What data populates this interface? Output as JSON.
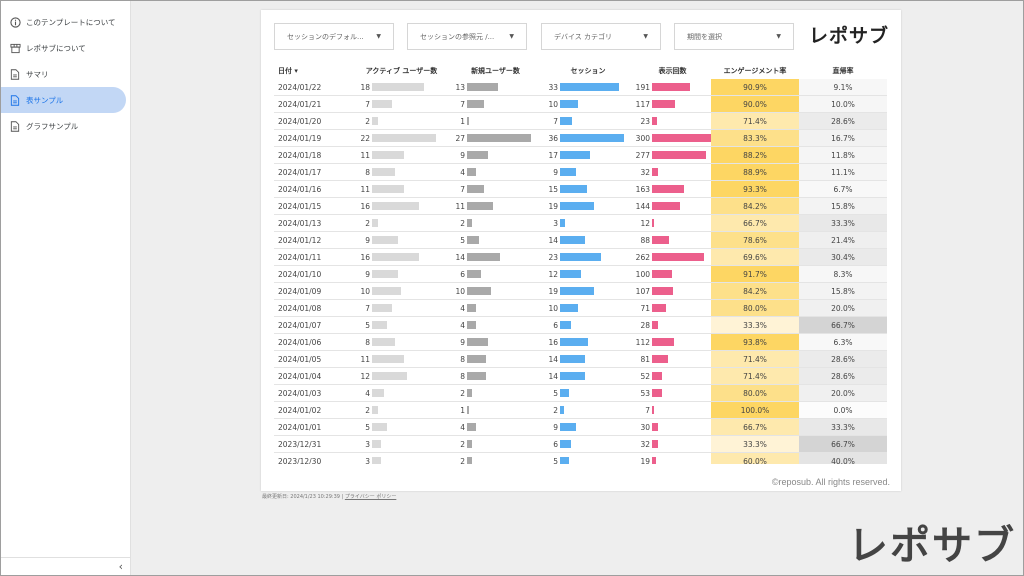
{
  "sidebar": {
    "items": [
      {
        "label": "このテンプレートについて",
        "icon": "info-icon",
        "active": false
      },
      {
        "label": "レポサブについて",
        "icon": "store-icon",
        "active": false
      },
      {
        "label": "サマリ",
        "icon": "document-icon",
        "active": false
      },
      {
        "label": "表サンプル",
        "icon": "document-icon",
        "active": true
      },
      {
        "label": "グラフサンプル",
        "icon": "document-icon",
        "active": false
      }
    ],
    "collapse_glyph": "‹"
  },
  "filters": [
    {
      "label": "セッションのデフォル..."
    },
    {
      "label": "セッションの参照元 /..."
    },
    {
      "label": "デバイス カテゴリ"
    },
    {
      "label": "期間を選択"
    }
  ],
  "logo": "レポサブ",
  "table": {
    "headers": {
      "date": "日付 ▾",
      "active_users": "アクティブ ユーザー数",
      "new_users": "新規ユーザー数",
      "sessions": "セッション",
      "views": "表示回数",
      "engagement": "エンゲージメント率",
      "bounce": "直帰率"
    },
    "rows": [
      {
        "date": "2024/01/22",
        "active": 18,
        "new": 13,
        "sessions": 33,
        "views": 191,
        "engagement": "90.9%",
        "bounce": "9.1%"
      },
      {
        "date": "2024/01/21",
        "active": 7,
        "new": 7,
        "sessions": 10,
        "views": 117,
        "engagement": "90.0%",
        "bounce": "10.0%"
      },
      {
        "date": "2024/01/20",
        "active": 2,
        "new": 1,
        "sessions": 7,
        "views": 23,
        "engagement": "71.4%",
        "bounce": "28.6%"
      },
      {
        "date": "2024/01/19",
        "active": 22,
        "new": 27,
        "sessions": 36,
        "views": 300,
        "engagement": "83.3%",
        "bounce": "16.7%"
      },
      {
        "date": "2024/01/18",
        "active": 11,
        "new": 9,
        "sessions": 17,
        "views": 277,
        "engagement": "88.2%",
        "bounce": "11.8%"
      },
      {
        "date": "2024/01/17",
        "active": 8,
        "new": 4,
        "sessions": 9,
        "views": 32,
        "engagement": "88.9%",
        "bounce": "11.1%"
      },
      {
        "date": "2024/01/16",
        "active": 11,
        "new": 7,
        "sessions": 15,
        "views": 163,
        "engagement": "93.3%",
        "bounce": "6.7%"
      },
      {
        "date": "2024/01/15",
        "active": 16,
        "new": 11,
        "sessions": 19,
        "views": 144,
        "engagement": "84.2%",
        "bounce": "15.8%"
      },
      {
        "date": "2024/01/13",
        "active": 2,
        "new": 2,
        "sessions": 3,
        "views": 12,
        "engagement": "66.7%",
        "bounce": "33.3%"
      },
      {
        "date": "2024/01/12",
        "active": 9,
        "new": 5,
        "sessions": 14,
        "views": 88,
        "engagement": "78.6%",
        "bounce": "21.4%"
      },
      {
        "date": "2024/01/11",
        "active": 16,
        "new": 14,
        "sessions": 23,
        "views": 262,
        "engagement": "69.6%",
        "bounce": "30.4%"
      },
      {
        "date": "2024/01/10",
        "active": 9,
        "new": 6,
        "sessions": 12,
        "views": 100,
        "engagement": "91.7%",
        "bounce": "8.3%"
      },
      {
        "date": "2024/01/09",
        "active": 10,
        "new": 10,
        "sessions": 19,
        "views": 107,
        "engagement": "84.2%",
        "bounce": "15.8%"
      },
      {
        "date": "2024/01/08",
        "active": 7,
        "new": 4,
        "sessions": 10,
        "views": 71,
        "engagement": "80.0%",
        "bounce": "20.0%"
      },
      {
        "date": "2024/01/07",
        "active": 5,
        "new": 4,
        "sessions": 6,
        "views": 28,
        "engagement": "33.3%",
        "bounce": "66.7%"
      },
      {
        "date": "2024/01/06",
        "active": 8,
        "new": 9,
        "sessions": 16,
        "views": 112,
        "engagement": "93.8%",
        "bounce": "6.3%"
      },
      {
        "date": "2024/01/05",
        "active": 11,
        "new": 8,
        "sessions": 14,
        "views": 81,
        "engagement": "71.4%",
        "bounce": "28.6%"
      },
      {
        "date": "2024/01/04",
        "active": 12,
        "new": 8,
        "sessions": 14,
        "views": 52,
        "engagement": "71.4%",
        "bounce": "28.6%"
      },
      {
        "date": "2024/01/03",
        "active": 4,
        "new": 2,
        "sessions": 5,
        "views": 53,
        "engagement": "80.0%",
        "bounce": "20.0%"
      },
      {
        "date": "2024/01/02",
        "active": 2,
        "new": 1,
        "sessions": 2,
        "views": 7,
        "engagement": "100.0%",
        "bounce": "0.0%"
      },
      {
        "date": "2024/01/01",
        "active": 5,
        "new": 4,
        "sessions": 9,
        "views": 30,
        "engagement": "66.7%",
        "bounce": "33.3%"
      },
      {
        "date": "2023/12/31",
        "active": 3,
        "new": 2,
        "sessions": 6,
        "views": 32,
        "engagement": "33.3%",
        "bounce": "66.7%"
      },
      {
        "date": "2023/12/30",
        "active": 3,
        "new": 2,
        "sessions": 5,
        "views": 19,
        "engagement": "60.0%",
        "bounce": "40.0%"
      }
    ],
    "colors": {
      "active_bar": "#d9d9d9",
      "new_bar": "#a9a9a9",
      "sessions_bar": "#5baef0",
      "views_bar": "#ec5f8c"
    }
  },
  "copyright": "©reposub. All rights reserved.",
  "footer": {
    "updated": "最終更新日: 2024/1/23 10:29:39",
    "separator": "|",
    "privacy": "プライバシー ポリシー"
  },
  "brand_logo": "レポサブ"
}
